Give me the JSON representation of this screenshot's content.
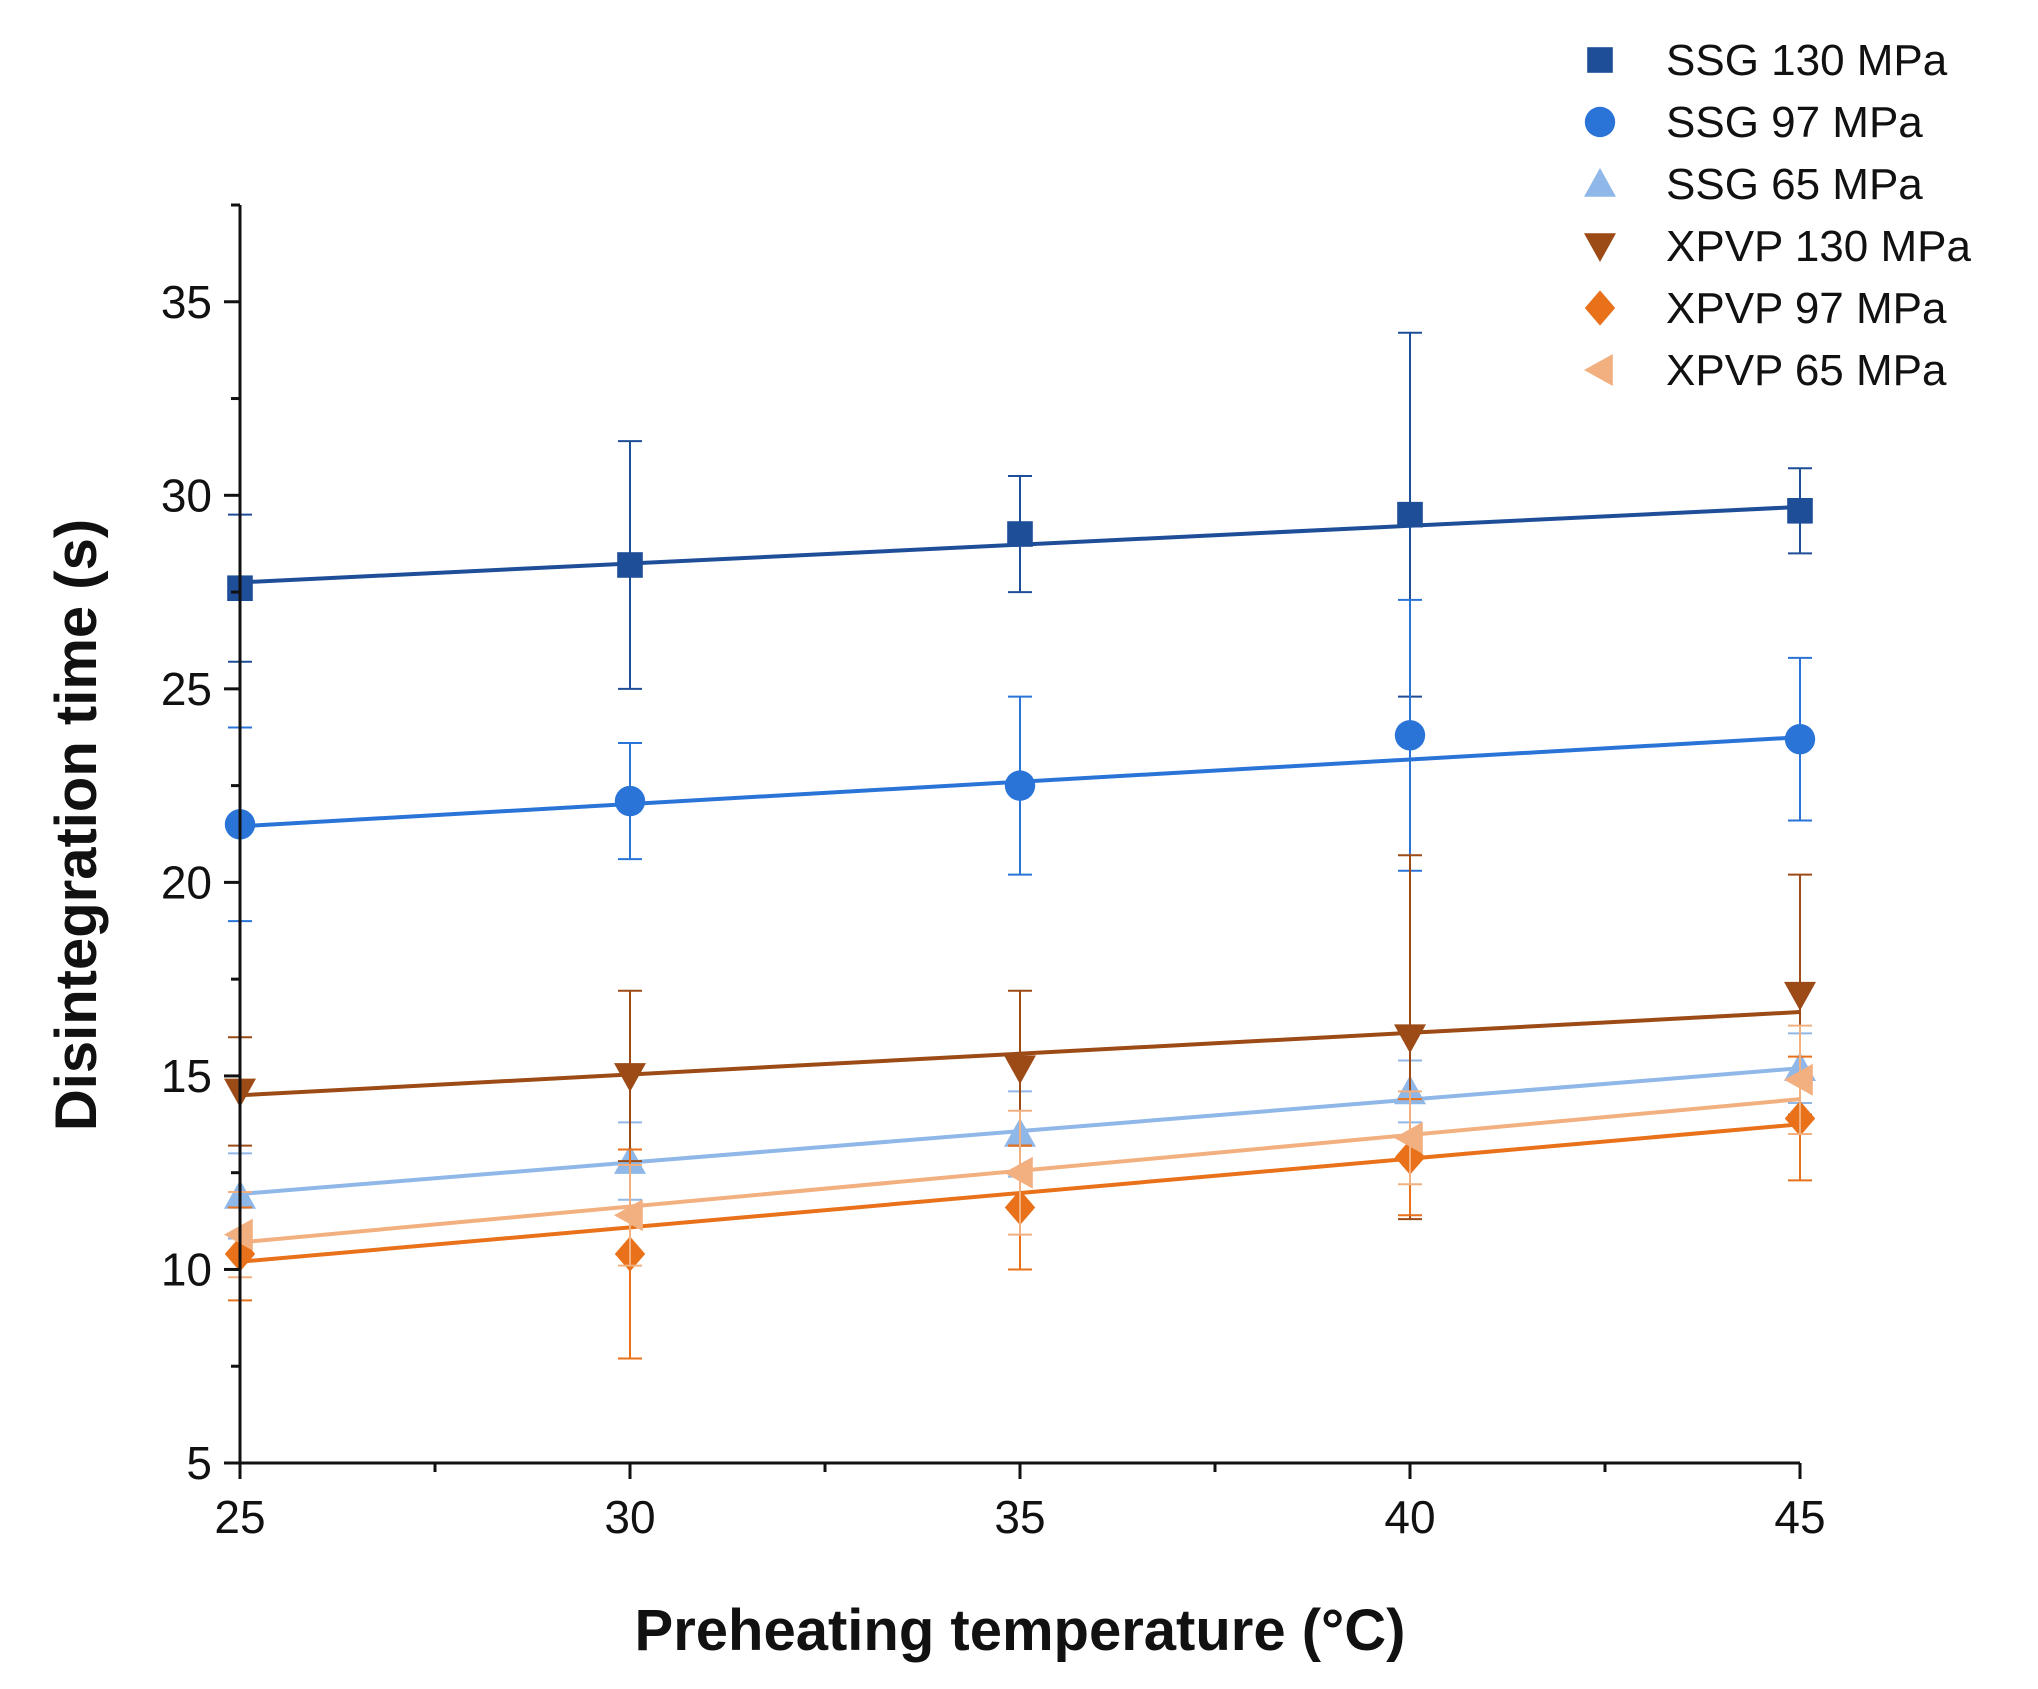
{
  "chart_data": {
    "type": "scatter",
    "title": "",
    "xlabel": "Preheating temperature (°C)",
    "ylabel": "Disintegration time (s)",
    "xlim": [
      25,
      45
    ],
    "ylim": [
      5,
      37.5
    ],
    "x_ticks": [
      25,
      30,
      35,
      40,
      45
    ],
    "y_ticks": [
      5,
      10,
      15,
      20,
      25,
      30,
      35
    ],
    "legend_position": "top-right",
    "grid": false,
    "series": [
      {
        "name": "SSG 130 MPa",
        "marker": "square",
        "color": "#1f4e99",
        "x": [
          25,
          30,
          35,
          40,
          45
        ],
        "y": [
          27.6,
          28.2,
          29.0,
          29.5,
          29.6
        ],
        "err": [
          1.9,
          3.2,
          1.5,
          4.7,
          1.1
        ],
        "fit": [
          27.75,
          29.7
        ]
      },
      {
        "name": "SSG 97 MPa",
        "marker": "circle",
        "color": "#2a74d8",
        "x": [
          25,
          30,
          35,
          40,
          45
        ],
        "y": [
          21.5,
          22.1,
          22.5,
          23.8,
          23.7
        ],
        "err": [
          2.5,
          1.5,
          2.3,
          3.5,
          2.1
        ],
        "fit": [
          21.45,
          23.75
        ]
      },
      {
        "name": "SSG 65 MPa",
        "marker": "triangle-up",
        "color": "#8fb7e8",
        "x": [
          25,
          30,
          35,
          40,
          45
        ],
        "y": [
          11.9,
          12.8,
          13.5,
          14.6,
          15.2
        ],
        "err": [
          1.1,
          1.0,
          1.1,
          0.8,
          0.9
        ],
        "fit": [
          11.95,
          15.2
        ]
      },
      {
        "name": "XPVP 130 MPa",
        "marker": "triangle-down",
        "color": "#9c4a16",
        "x": [
          25,
          30,
          35,
          40,
          45
        ],
        "y": [
          14.6,
          15.0,
          15.2,
          16.0,
          17.1
        ],
        "err": [
          1.4,
          2.2,
          2.0,
          4.7,
          3.1
        ],
        "fit": [
          14.5,
          16.65
        ]
      },
      {
        "name": "XPVP 97 MPa",
        "marker": "diamond",
        "color": "#e8711a",
        "x": [
          25,
          30,
          35,
          40,
          45
        ],
        "y": [
          10.4,
          10.4,
          11.6,
          12.9,
          13.9
        ],
        "err": [
          1.2,
          2.7,
          1.6,
          1.5,
          1.6
        ],
        "fit": [
          10.2,
          13.75
        ]
      },
      {
        "name": "XPVP 65 MPa",
        "marker": "triangle-left",
        "color": "#f2b080",
        "x": [
          25,
          30,
          35,
          40,
          45
        ],
        "y": [
          10.9,
          11.4,
          12.5,
          13.4,
          14.9
        ],
        "err": [
          1.1,
          1.3,
          1.6,
          1.2,
          1.4
        ],
        "fit": [
          10.7,
          14.4
        ]
      }
    ]
  }
}
